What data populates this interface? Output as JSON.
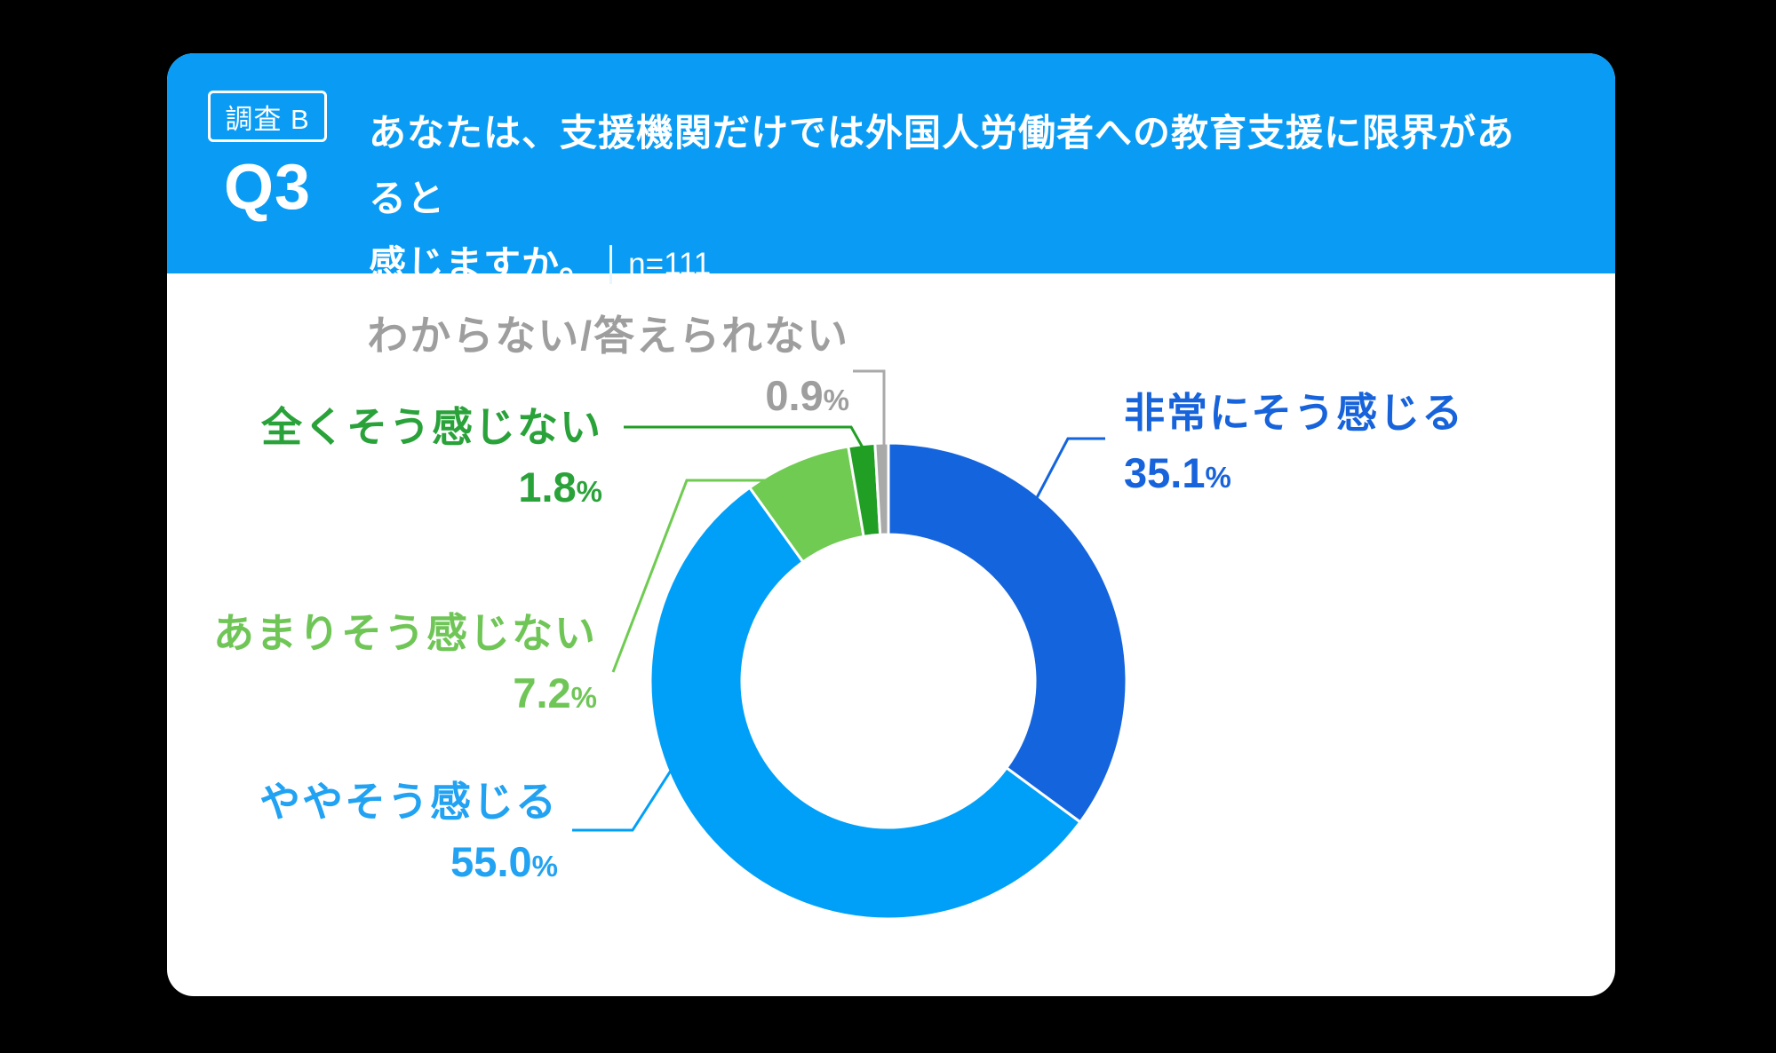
{
  "window": {
    "background_color": "#000000"
  },
  "card": {
    "background_color": "#ffffff"
  },
  "header": {
    "bg_color": "#0a9cf4",
    "badge_label": "調査 B",
    "question_id": "Q3",
    "question_line1": "あなたは、支援機関だけでは外国人労働者への教育支援に限界があると",
    "question_line2": "感じますか。",
    "sample_size": "n=111"
  },
  "chart_data": {
    "type": "pie",
    "subtype": "donut",
    "title": "あなたは、支援機関だけでは外国人労働者への教育支援に限界があると感じますか。",
    "n_label": "n=111",
    "unit": "%",
    "start_angle_deg": 0,
    "direction": "clockwise",
    "legend_position": "callout-labels",
    "series": [
      {
        "label": "非常にそう感じる",
        "value": 35.1,
        "color": "#1464dd",
        "label_color": "#1763db"
      },
      {
        "label": "ややそう感じる",
        "value": 55.0,
        "color": "#00a0f9",
        "label_color": "#21a2f2"
      },
      {
        "label": "あまりそう感じない",
        "value": 7.2,
        "color": "#6fcb51",
        "label_color": "#6fc657"
      },
      {
        "label": "全くそう感じない",
        "value": 1.8,
        "color": "#219e24",
        "label_color": "#2aa23a"
      },
      {
        "label": "わからない/答えられない",
        "value": 0.9,
        "color": "#a9a9a9",
        "label_color": "#9e9e9e"
      }
    ]
  }
}
